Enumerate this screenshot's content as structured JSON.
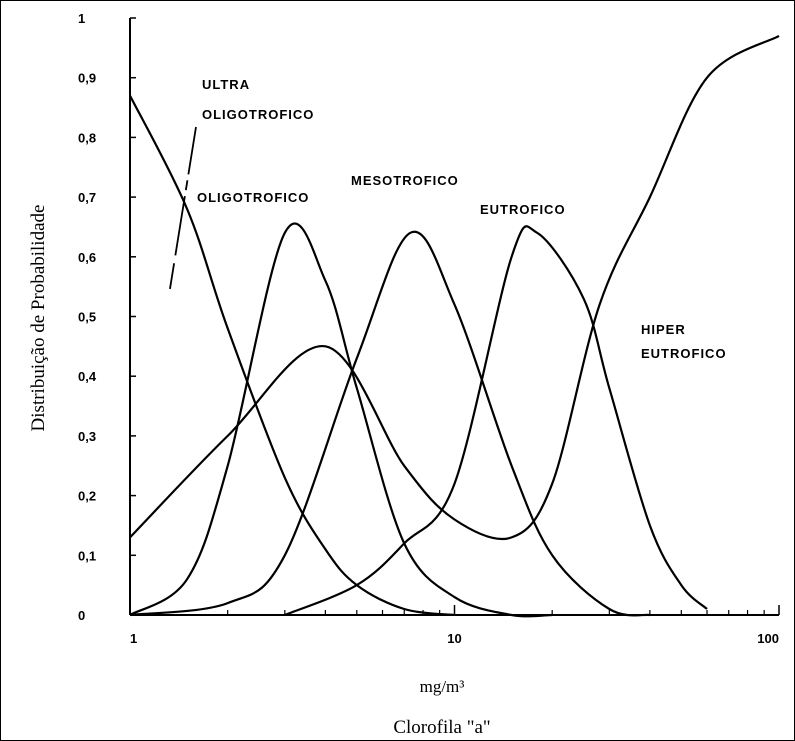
{
  "chart_data": {
    "type": "line",
    "ylabel": "Distribuição de Probabilidade",
    "xlabel_unit": "mg/m³",
    "xlabel": "Clorofila \"a\"",
    "x_scale": "log",
    "xlim": [
      1,
      100
    ],
    "ylim": [
      0,
      1
    ],
    "x_ticks": [
      1,
      10,
      100
    ],
    "x_tick_labels": [
      "1",
      "10",
      "100"
    ],
    "y_ticks": [
      0,
      0.1,
      0.2,
      0.3,
      0.4,
      0.5,
      0.6,
      0.7,
      0.8,
      0.9,
      1
    ],
    "y_tick_labels": [
      "0",
      "0,1",
      "0,2",
      "0,3",
      "0,4",
      "0,5",
      "0,6",
      "0,7",
      "0,8",
      "0,9",
      "1"
    ],
    "grid": false,
    "legend": "none",
    "series": [
      {
        "name": "ULTRA OLIGOTROFICO",
        "x": [
          1,
          1.5,
          2,
          3,
          4,
          5,
          7,
          10
        ],
        "y": [
          0.87,
          0.68,
          0.48,
          0.23,
          0.11,
          0.05,
          0.01,
          0
        ]
      },
      {
        "name": "OLIGOTROFICO",
        "x": [
          1,
          1.5,
          2,
          3,
          4,
          5,
          7,
          10,
          15,
          20
        ],
        "y": [
          0,
          0.06,
          0.25,
          0.64,
          0.56,
          0.38,
          0.12,
          0.03,
          0,
          0
        ]
      },
      {
        "name": "MESOTROFICO",
        "x": [
          1,
          2,
          3,
          5,
          7.3,
          10,
          15,
          20,
          30,
          40
        ],
        "y": [
          0,
          0.02,
          0.1,
          0.43,
          0.64,
          0.52,
          0.25,
          0.1,
          0.01,
          0
        ]
      },
      {
        "name": "EUTROFICO",
        "x": [
          3,
          5,
          7,
          10,
          15,
          18,
          25,
          30,
          40,
          50,
          60
        ],
        "y": [
          0,
          0.05,
          0.12,
          0.22,
          0.6,
          0.64,
          0.53,
          0.38,
          0.15,
          0.05,
          0.01
        ]
      },
      {
        "name": "HIPER EUTROFICO",
        "x": [
          1,
          2,
          4,
          7,
          10,
          15,
          20,
          28,
          40,
          60,
          100
        ],
        "y": [
          0.13,
          0.3,
          0.45,
          0.25,
          0.16,
          0.13,
          0.22,
          0.52,
          0.7,
          0.9,
          0.97
        ]
      }
    ],
    "annotations": {
      "ultra_line1": "ULTRA",
      "ultra_line2": "OLIGOTROFICO",
      "oligo": "OLIGOTROFICO",
      "meso": "MESOTROFICO",
      "eutro": "EUTROFICO",
      "hiper_line1": "HIPER",
      "hiper_line2": "EUTROFICO"
    }
  }
}
